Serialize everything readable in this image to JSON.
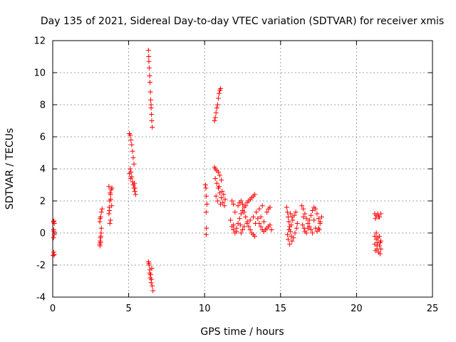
{
  "chart_data": {
    "type": "scatter",
    "title": "Day 135 of 2021, Sidereal Day-to-day VTEC variation (SDTVAR) for receiver xmis",
    "xlabel": "GPS time / hours",
    "ylabel": "SDTVAR / TECUs",
    "xlim": [
      0,
      25
    ],
    "ylim": [
      -4,
      12
    ],
    "xticks": [
      0,
      5,
      10,
      15,
      20,
      25
    ],
    "yticks": [
      -4,
      -2,
      0,
      2,
      4,
      6,
      8,
      10,
      12
    ],
    "xtick_labels": [
      "0",
      "5",
      "10",
      "15",
      "20",
      "25"
    ],
    "ytick_labels": [
      "-4",
      "-2",
      "0",
      "2",
      "4",
      "6",
      "8",
      "10",
      "12"
    ],
    "grid": true,
    "marker": "+",
    "series_color": "#ff0000",
    "series": [
      {
        "name": "SDTVAR",
        "points": [
          [
            0.05,
            0.7
          ],
          [
            0.08,
            0.75
          ],
          [
            0.1,
            0.6
          ],
          [
            0.06,
            0.2
          ],
          [
            0.08,
            0.1
          ],
          [
            0.1,
            -0.1
          ],
          [
            0.05,
            -0.3
          ],
          [
            0.07,
            -1.2
          ],
          [
            0.1,
            -1.35
          ],
          [
            0.03,
            -1.4
          ],
          [
            3.1,
            -0.7
          ],
          [
            3.12,
            -0.5
          ],
          [
            3.15,
            -0.3
          ],
          [
            3.18,
            0.0
          ],
          [
            3.2,
            0.3
          ],
          [
            3.17,
            -0.2
          ],
          [
            3.14,
            -0.6
          ],
          [
            3.11,
            -0.8
          ],
          [
            3.1,
            0.7
          ],
          [
            3.15,
            1.0
          ],
          [
            3.2,
            1.3
          ],
          [
            3.25,
            1.5
          ],
          [
            3.12,
            0.9
          ],
          [
            3.7,
            1.2
          ],
          [
            3.72,
            1.6
          ],
          [
            3.75,
            2.0
          ],
          [
            3.8,
            2.4
          ],
          [
            3.85,
            2.7
          ],
          [
            3.7,
            2.9
          ],
          [
            3.78,
            2.5
          ],
          [
            3.82,
            2.1
          ],
          [
            3.88,
            1.7
          ],
          [
            3.74,
            1.4
          ],
          [
            3.9,
            2.8
          ],
          [
            3.76,
            0.6
          ],
          [
            3.8,
            0.8
          ],
          [
            5.05,
            6.2
          ],
          [
            5.1,
            6.1
          ],
          [
            5.15,
            5.8
          ],
          [
            5.2,
            5.5
          ],
          [
            5.25,
            5.1
          ],
          [
            5.3,
            4.7
          ],
          [
            5.35,
            4.3
          ],
          [
            5.1,
            4.0
          ],
          [
            5.15,
            3.8
          ],
          [
            5.2,
            3.5
          ],
          [
            5.25,
            3.2
          ],
          [
            5.3,
            3.0
          ],
          [
            5.35,
            2.8
          ],
          [
            5.4,
            2.6
          ],
          [
            5.45,
            2.4
          ],
          [
            5.05,
            3.7
          ],
          [
            5.12,
            3.4
          ],
          [
            5.38,
            3.1
          ],
          [
            5.42,
            2.8
          ],
          [
            6.3,
            11.4
          ],
          [
            6.32,
            11.0
          ],
          [
            6.35,
            10.3
          ],
          [
            6.38,
            9.8
          ],
          [
            6.4,
            9.4
          ],
          [
            6.43,
            8.8
          ],
          [
            6.45,
            8.3
          ],
          [
            6.48,
            7.8
          ],
          [
            6.5,
            7.4
          ],
          [
            6.52,
            7.0
          ],
          [
            6.55,
            6.6
          ],
          [
            6.33,
            10.7
          ],
          [
            6.47,
            8.0
          ],
          [
            6.3,
            -1.8
          ],
          [
            6.35,
            -2.0
          ],
          [
            6.4,
            -2.3
          ],
          [
            6.45,
            -2.6
          ],
          [
            6.5,
            -2.9
          ],
          [
            6.55,
            -3.3
          ],
          [
            6.6,
            -3.6
          ],
          [
            6.38,
            -2.5
          ],
          [
            6.42,
            -2.8
          ],
          [
            6.48,
            -3.1
          ],
          [
            6.52,
            -2.2
          ],
          [
            6.33,
            -1.9
          ],
          [
            10.05,
            3.0
          ],
          [
            10.08,
            2.8
          ],
          [
            10.1,
            2.3
          ],
          [
            10.15,
            1.8
          ],
          [
            10.1,
            1.3
          ],
          [
            10.12,
            0.3
          ],
          [
            10.1,
            -0.1
          ],
          [
            10.65,
            7.0
          ],
          [
            10.7,
            7.2
          ],
          [
            10.75,
            7.5
          ],
          [
            10.8,
            7.8
          ],
          [
            10.85,
            8.0
          ],
          [
            10.9,
            8.4
          ],
          [
            10.95,
            8.7
          ],
          [
            11.0,
            8.9
          ],
          [
            11.05,
            9.0
          ],
          [
            10.65,
            4.1
          ],
          [
            10.7,
            4.0
          ],
          [
            10.8,
            3.9
          ],
          [
            10.9,
            3.8
          ],
          [
            11.0,
            3.6
          ],
          [
            11.1,
            3.3
          ],
          [
            10.7,
            3.4
          ],
          [
            10.8,
            3.1
          ],
          [
            10.9,
            2.8
          ],
          [
            11.0,
            2.5
          ],
          [
            11.1,
            2.2
          ],
          [
            11.2,
            1.9
          ],
          [
            11.3,
            1.7
          ],
          [
            10.75,
            2.3
          ],
          [
            10.85,
            2.0
          ],
          [
            11.05,
            1.8
          ],
          [
            11.15,
            2.6
          ],
          [
            11.25,
            2.4
          ],
          [
            10.95,
            2.9
          ],
          [
            11.35,
            2.1
          ],
          [
            11.8,
            2.0
          ],
          [
            11.9,
            1.8
          ],
          [
            12.0,
            1.3
          ],
          [
            11.7,
            0.8
          ],
          [
            11.8,
            0.4
          ],
          [
            11.9,
            0.2
          ],
          [
            12.0,
            0.0
          ],
          [
            12.1,
            0.3
          ],
          [
            12.2,
            0.6
          ],
          [
            12.3,
            0.9
          ],
          [
            12.4,
            1.2
          ],
          [
            12.5,
            1.4
          ],
          [
            12.6,
            1.6
          ],
          [
            12.7,
            1.7
          ],
          [
            12.8,
            1.9
          ],
          [
            12.9,
            2.0
          ],
          [
            13.0,
            2.1
          ],
          [
            13.1,
            2.2
          ],
          [
            13.2,
            2.3
          ],
          [
            13.3,
            2.4
          ],
          [
            12.2,
            1.7
          ],
          [
            12.3,
            1.9
          ],
          [
            12.4,
            2.0
          ],
          [
            12.5,
            1.8
          ],
          [
            12.6,
            1.3
          ],
          [
            12.7,
            1.0
          ],
          [
            12.8,
            0.7
          ],
          [
            12.9,
            0.4
          ],
          [
            13.0,
            0.2
          ],
          [
            13.1,
            0.0
          ],
          [
            13.2,
            -0.1
          ],
          [
            13.3,
            -0.2
          ],
          [
            12.4,
            0.0
          ],
          [
            12.5,
            0.2
          ],
          [
            12.6,
            0.4
          ],
          [
            12.8,
            0.6
          ],
          [
            13.0,
            0.8
          ],
          [
            13.2,
            1.0
          ],
          [
            13.4,
            1.3
          ],
          [
            13.6,
            1.5
          ],
          [
            13.8,
            1.7
          ],
          [
            13.5,
            0.9
          ],
          [
            13.6,
            0.6
          ],
          [
            13.7,
            0.4
          ],
          [
            13.8,
            0.2
          ],
          [
            13.9,
            0.1
          ],
          [
            14.0,
            0.2
          ],
          [
            14.1,
            0.3
          ],
          [
            14.2,
            0.4
          ],
          [
            14.3,
            0.5
          ],
          [
            14.4,
            0.2
          ],
          [
            13.7,
            1.0
          ],
          [
            13.9,
            0.7
          ],
          [
            14.1,
            1.3
          ],
          [
            14.2,
            1.5
          ],
          [
            14.3,
            1.6
          ],
          [
            12.1,
            0.1
          ],
          [
            12.35,
            0.5
          ],
          [
            11.9,
            0.5
          ],
          [
            13.35,
            0.6
          ],
          [
            15.4,
            1.6
          ],
          [
            15.45,
            1.3
          ],
          [
            15.5,
            1.0
          ],
          [
            15.55,
            0.7
          ],
          [
            15.6,
            0.4
          ],
          [
            15.65,
            0.1
          ],
          [
            15.7,
            -0.2
          ],
          [
            15.75,
            -0.5
          ],
          [
            15.6,
            -0.7
          ],
          [
            15.5,
            -0.4
          ],
          [
            15.45,
            -0.1
          ],
          [
            15.55,
            0.2
          ],
          [
            15.7,
            0.5
          ],
          [
            15.8,
            0.8
          ],
          [
            15.9,
            1.1
          ],
          [
            16.0,
            1.3
          ],
          [
            15.85,
            -0.3
          ],
          [
            15.95,
            0.0
          ],
          [
            16.05,
            0.3
          ],
          [
            16.1,
            0.6
          ],
          [
            15.65,
            1.2
          ],
          [
            15.75,
            1.0
          ],
          [
            16.4,
            1.7
          ],
          [
            16.5,
            1.5
          ],
          [
            16.6,
            1.2
          ],
          [
            16.7,
            0.9
          ],
          [
            16.8,
            0.6
          ],
          [
            16.9,
            0.4
          ],
          [
            17.0,
            0.2
          ],
          [
            17.1,
            0.0
          ],
          [
            16.45,
            0.5
          ],
          [
            16.55,
            0.3
          ],
          [
            16.6,
            0.1
          ],
          [
            16.7,
            0.0
          ],
          [
            16.8,
            0.3
          ],
          [
            16.9,
            0.8
          ],
          [
            17.0,
            1.1
          ],
          [
            17.1,
            1.4
          ],
          [
            17.2,
            1.6
          ],
          [
            17.3,
            1.5
          ],
          [
            17.4,
            1.2
          ],
          [
            17.5,
            0.9
          ],
          [
            17.6,
            0.6
          ],
          [
            17.3,
            0.3
          ],
          [
            17.4,
            0.1
          ],
          [
            17.5,
            0.3
          ],
          [
            17.6,
            0.7
          ],
          [
            17.7,
            1.0
          ],
          [
            17.2,
            0.8
          ],
          [
            16.5,
            1.0
          ],
          [
            17.55,
            0.2
          ],
          [
            21.2,
            1.2
          ],
          [
            21.3,
            1.1
          ],
          [
            21.4,
            1.2
          ],
          [
            21.5,
            1.0
          ],
          [
            21.6,
            1.2
          ],
          [
            21.25,
            0.9
          ],
          [
            21.45,
            1.0
          ],
          [
            21.2,
            -0.2
          ],
          [
            21.3,
            -0.4
          ],
          [
            21.4,
            -0.6
          ],
          [
            21.5,
            -0.8
          ],
          [
            21.6,
            -1.0
          ],
          [
            21.25,
            -1.1
          ],
          [
            21.35,
            -1.0
          ],
          [
            21.45,
            -1.2
          ],
          [
            21.55,
            -1.3
          ],
          [
            21.2,
            -0.7
          ],
          [
            21.4,
            -0.3
          ],
          [
            21.6,
            -0.5
          ],
          [
            21.3,
            0.0
          ],
          [
            21.5,
            -0.2
          ],
          [
            21.35,
            -0.8
          ],
          [
            21.55,
            -0.6
          ]
        ]
      }
    ]
  }
}
